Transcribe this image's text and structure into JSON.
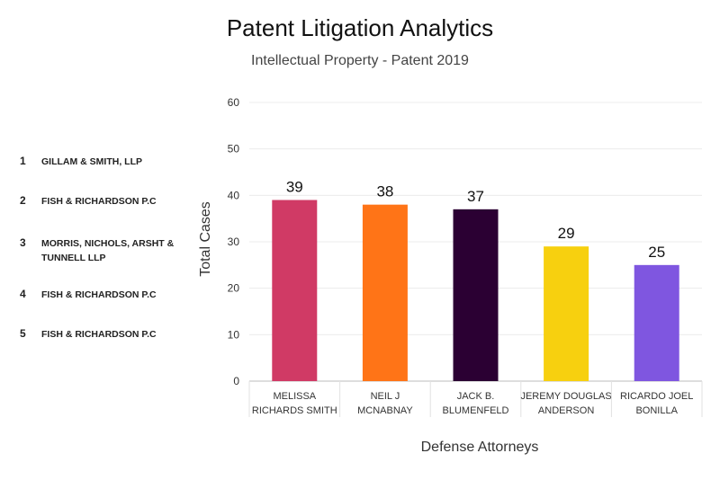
{
  "header": {
    "title": "Patent Litigation Analytics",
    "subtitle": "Intellectual Property - Patent 2019"
  },
  "firms": [
    {
      "rank": "1",
      "name": "GILLAM & SMITH, LLP"
    },
    {
      "rank": "2",
      "name": "FISH & RICHARDSON P.C"
    },
    {
      "rank": "3",
      "name": "MORRIS, NICHOLS, ARSHT & TUNNELL LLP"
    },
    {
      "rank": "4",
      "name": "FISH & RICHARDSON P.C"
    },
    {
      "rank": "5",
      "name": "FISH & RICHARDSON P.C"
    }
  ],
  "chart_data": {
    "type": "bar",
    "categories": [
      [
        "MELISSA",
        "RICHARDS SMITH"
      ],
      [
        "NEIL J",
        "MCNABNAY"
      ],
      [
        "JACK B.",
        "BLUMENFELD"
      ],
      [
        "JEREMY DOUGLAS",
        "ANDERSON"
      ],
      [
        "RICARDO JOEL",
        "BONILLA"
      ]
    ],
    "values": [
      39,
      38,
      37,
      29,
      25
    ],
    "colors": [
      "#d03a65",
      "#ff7417",
      "#2b0033",
      "#f7d00f",
      "#7f56e0"
    ],
    "xlabel": "Defense Attorneys",
    "ylabel": "Total Cases",
    "ylim": [
      0,
      60
    ],
    "yticks": [
      0,
      10,
      20,
      30,
      40,
      50,
      60
    ],
    "grid": true
  }
}
